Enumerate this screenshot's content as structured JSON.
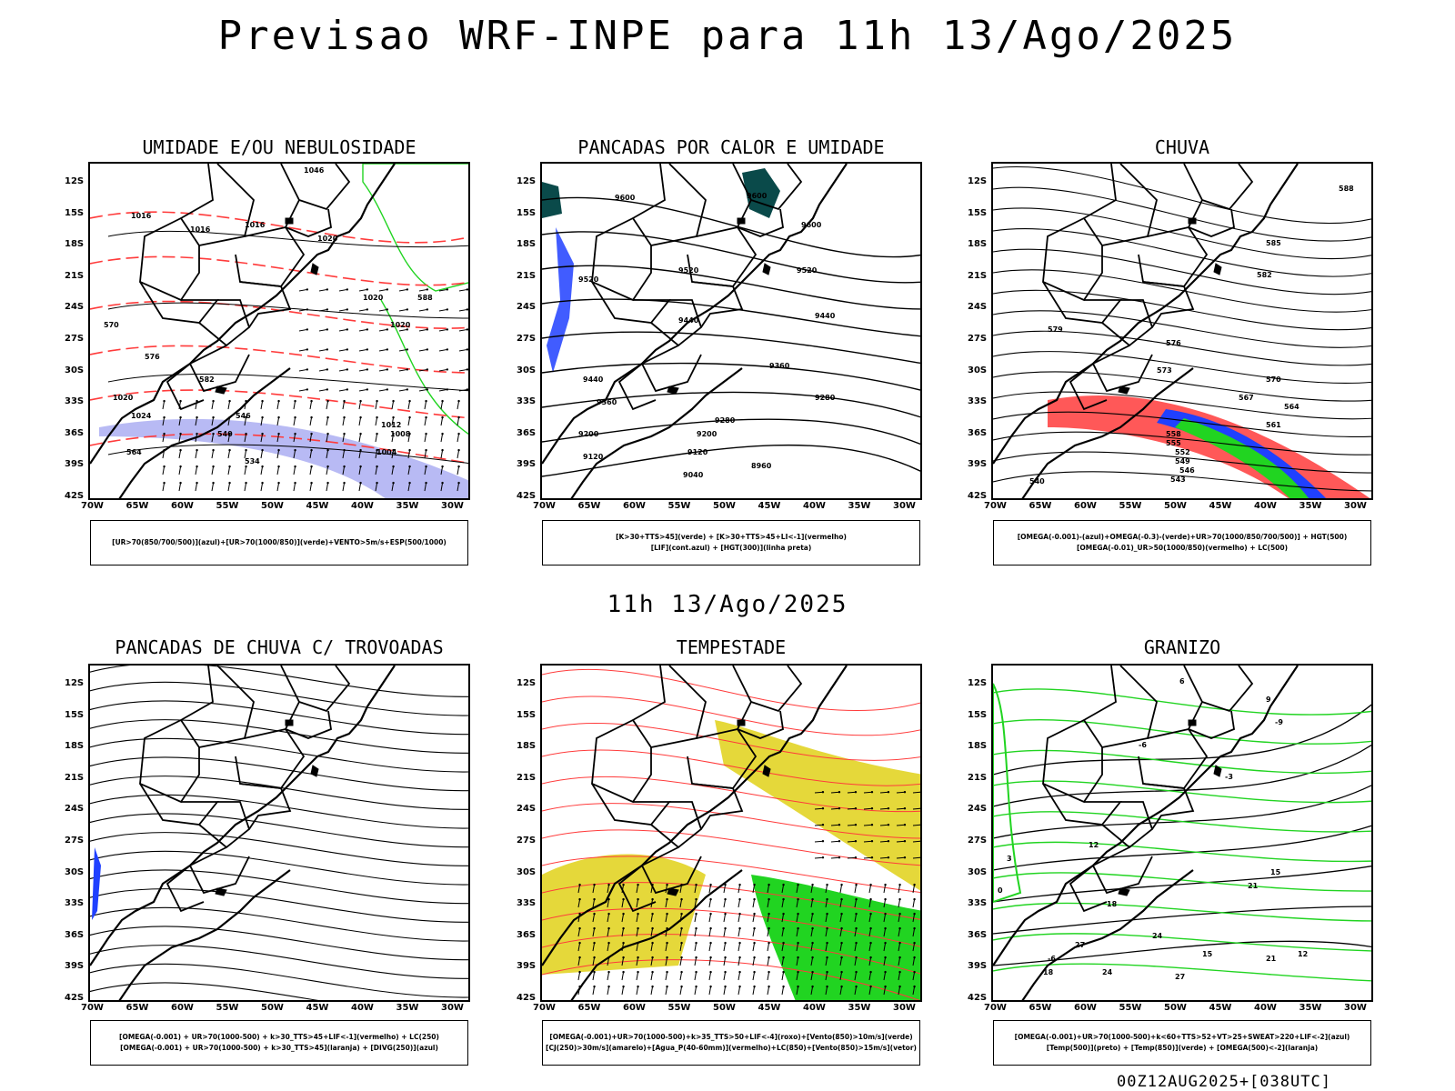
{
  "page": {
    "title": "Previsao WRF-INPE  para 11h 13/Ago/2025",
    "mid_time": "11h 13/Ago/2025",
    "footer": "00Z12AUG2025+[038UTC]"
  },
  "axes": {
    "lat_labels": [
      "12S",
      "15S",
      "18S",
      "21S",
      "24S",
      "27S",
      "30S",
      "33S",
      "36S",
      "39S",
      "42S"
    ],
    "lon_labels": [
      "70W",
      "65W",
      "60W",
      "55W",
      "50W",
      "45W",
      "40W",
      "35W",
      "30W"
    ]
  },
  "colors": {
    "red": "#ff3b3b",
    "green": "#21d421",
    "blue": "#2040ff",
    "lavender": "#9a9cf0",
    "yellow": "#e5d83a",
    "dark_teal": "#0a4a4a"
  },
  "panels": [
    {
      "title": "UMIDADE E/OU NEBULOSIDADE",
      "legend": [
        "[UR>70(850/700/500)](azul)+[UR>70(1000/850)](verde)+VENTO>5m/s+ESP(500/1000)"
      ],
      "contour_labels": [
        "1016",
        "1016",
        "1016",
        "1020",
        "1020",
        "1020",
        "1020",
        "1024",
        "1012",
        "1008",
        "1004",
        "1046",
        "570",
        "576",
        "582",
        "588",
        "546",
        "540",
        "534",
        "564"
      ]
    },
    {
      "title": "PANCADAS POR CALOR E UMIDADE",
      "legend": [
        "[K>30+TTS>45](verde) + [K>30+TTS>45+LI<-1](vermelho)",
        "[LIF](cont.azul) + [HGT(300)](linha preta)"
      ],
      "contour_labels": [
        "9600",
        "9600",
        "9600",
        "9520",
        "9520",
        "9520",
        "9440",
        "9440",
        "9440",
        "9360",
        "9360",
        "9280",
        "9280",
        "9200",
        "9200",
        "9120",
        "9120",
        "9040",
        "8960"
      ]
    },
    {
      "title": "CHUVA",
      "legend": [
        "[OMEGA(-0.001)-(azul)+OMEGA(-0.3)-(verde)+UR>70(1000/850/700/500)] + HGT(500)",
        "[OMEGA(-0.01)_UR>50(1000/850)(vermelho) + LC(500)"
      ],
      "contour_labels": [
        "588",
        "585",
        "582",
        "579",
        "576",
        "573",
        "570",
        "567",
        "564",
        "561",
        "558",
        "555",
        "552",
        "549",
        "546",
        "543",
        "540"
      ]
    },
    {
      "title": "PANCADAS DE CHUVA C/ TROVOADAS",
      "legend": [
        "[OMEGA(-0.001) + UR>70(1000-500) + k>30_TTS>45+LIF<-1](vermelho) + LC(250)",
        "[OMEGA(-0.001) + UR>70(1000-500) + k>30_TTS>45](laranja) + [DIVG(250)](azul)"
      ],
      "contour_labels": []
    },
    {
      "title": "TEMPESTADE",
      "legend": [
        "[OMEGA(-0.001)+UR>70(1000-500)+k>35_TTS>50+LIF<-4](roxo)+[Vento(850)>10m/s](verde)",
        "[CJ(250)>30m/s](amarelo)+[Agua_P(40-60mm)](vermelho)+LC(850)+[Vento(850)>15m/s](vetor)"
      ],
      "contour_labels": []
    },
    {
      "title": "GRANIZO",
      "legend": [
        "[OMEGA(-0.001)+UR>70(1000-500)+k<60+TTS>52+VT>25+SWEAT>220+LIF<-2](azul)",
        "[Temp(500)](preto) + [Temp(850)](verde) + [OMEGA(500)<-2](laranja)"
      ],
      "contour_labels": [
        "-9",
        "-6",
        "-3",
        "0",
        "3",
        "6",
        "9",
        "12",
        "15",
        "18",
        "21",
        "24",
        "27",
        "-6",
        "12",
        "15",
        "18",
        "24",
        "27",
        "21"
      ]
    }
  ]
}
